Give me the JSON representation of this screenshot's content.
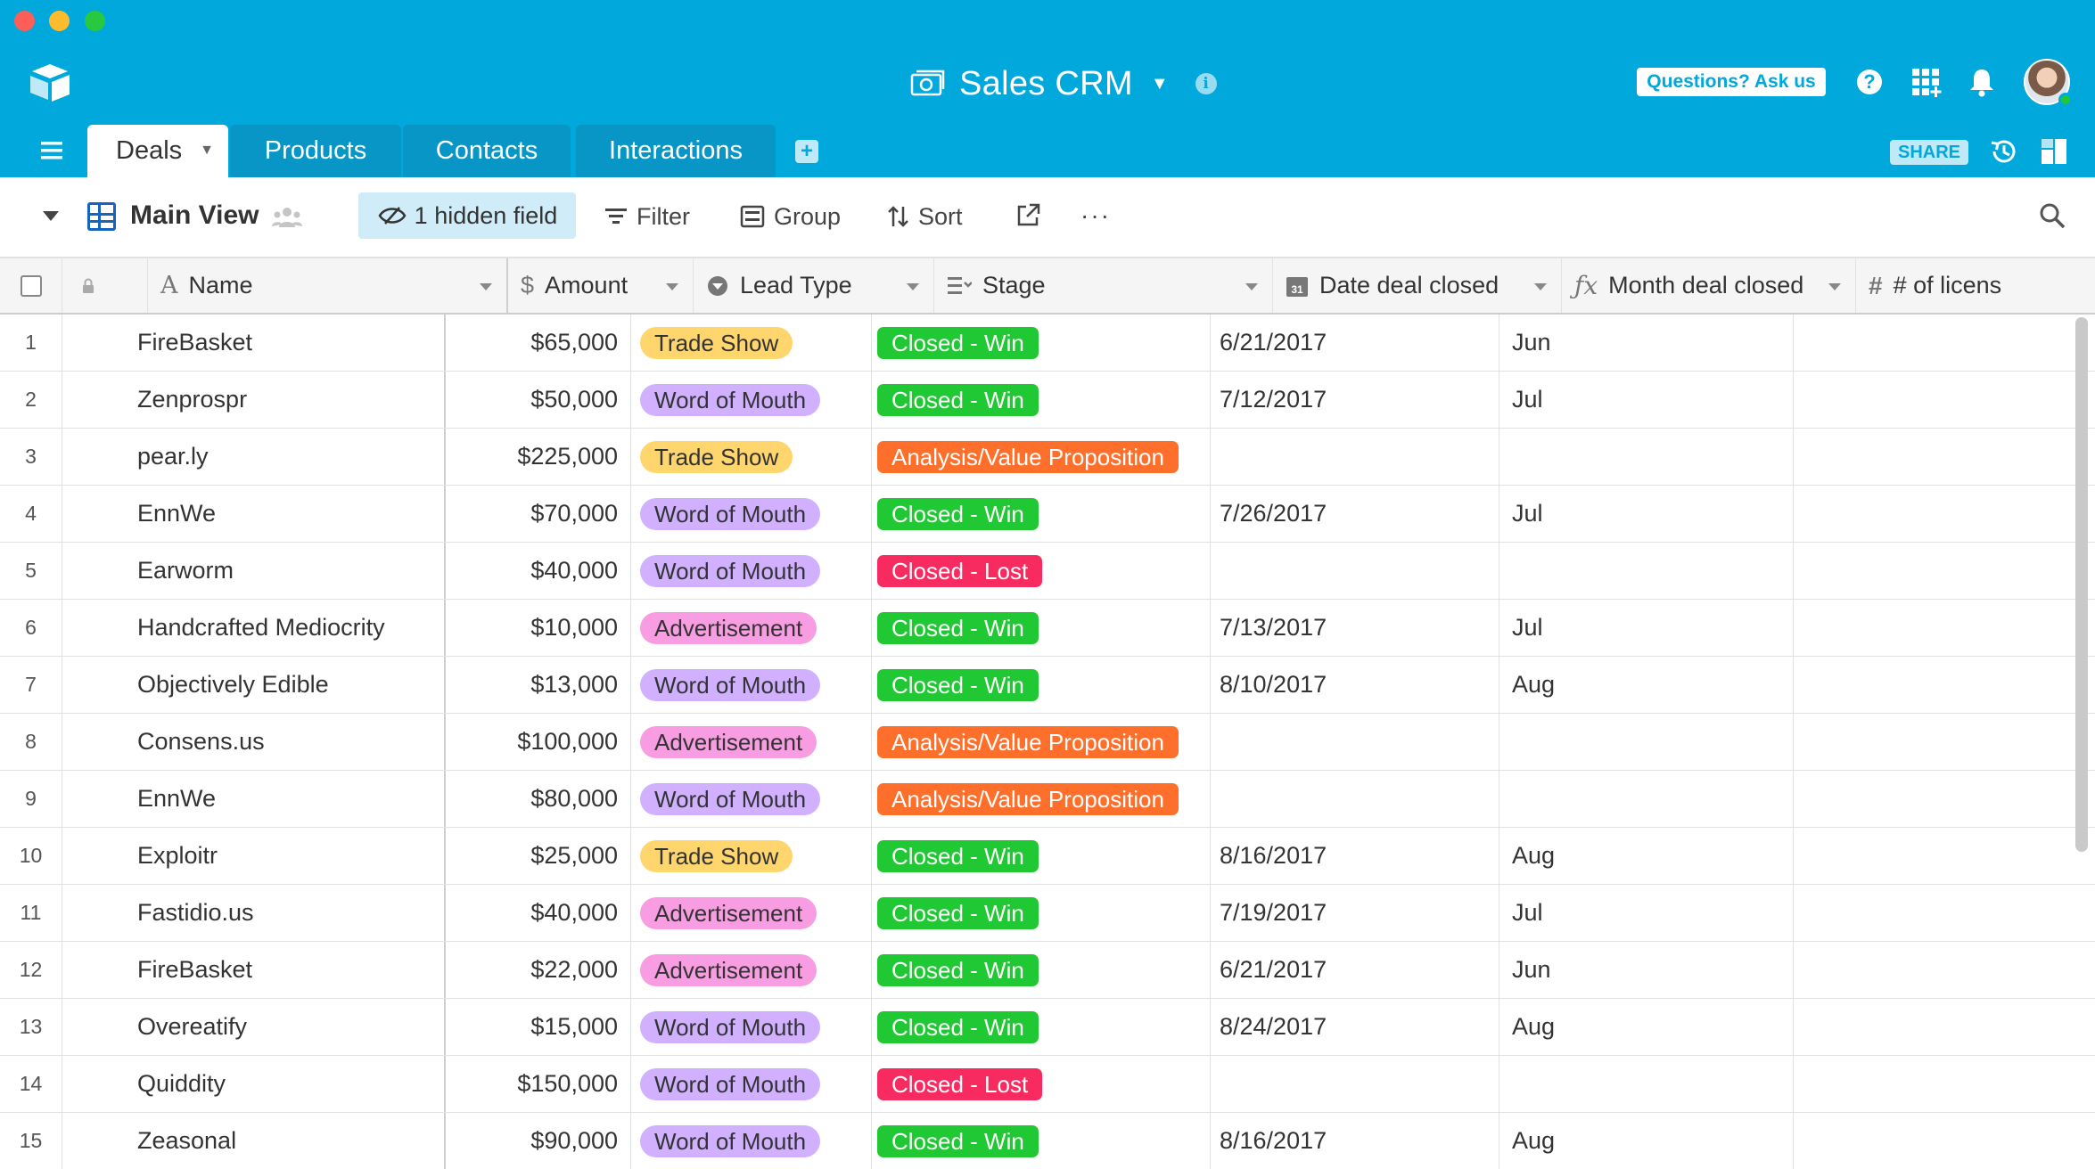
{
  "colors": {
    "header_bg": "#00a8dc",
    "tab_inactive_bg": "#0796c6",
    "pill_trade_show": "#ffd66e",
    "pill_word_of_mouth": "#d0b0ff",
    "pill_advertisement": "#f99de2",
    "stage_win": "#20c933",
    "stage_lost": "#f82b60",
    "stage_analysis": "#ff6f2c"
  },
  "header": {
    "base_title": "Sales CRM",
    "ask_label": "Questions? Ask us",
    "help_label": "?",
    "share_label": "SHARE",
    "info_label": "i"
  },
  "tabs": [
    {
      "label": "Deals",
      "active": true
    },
    {
      "label": "Products",
      "active": false
    },
    {
      "label": "Contacts",
      "active": false
    },
    {
      "label": "Interactions",
      "active": false
    }
  ],
  "viewbar": {
    "view_name": "Main View",
    "hidden_fields": "1 hidden field",
    "filter": "Filter",
    "group": "Group",
    "sort": "Sort",
    "more": "···"
  },
  "columns": {
    "name": "Name",
    "amount": "Amount",
    "lead_type": "Lead Type",
    "stage": "Stage",
    "date_closed": "Date deal closed",
    "month_closed": "Month deal closed",
    "licenses": "# of licens"
  },
  "rows": [
    {
      "num": "1",
      "name": "FireBasket",
      "amount": "$65,000",
      "lead": "Trade Show",
      "stage": "Closed - Win",
      "date": "6/21/2017",
      "month": "Jun"
    },
    {
      "num": "2",
      "name": "Zenprospr",
      "amount": "$50,000",
      "lead": "Word of Mouth",
      "stage": "Closed - Win",
      "date": "7/12/2017",
      "month": "Jul"
    },
    {
      "num": "3",
      "name": "pear.ly",
      "amount": "$225,000",
      "lead": "Trade Show",
      "stage": "Analysis/Value Proposition",
      "date": "",
      "month": ""
    },
    {
      "num": "4",
      "name": "EnnWe",
      "amount": "$70,000",
      "lead": "Word of Mouth",
      "stage": "Closed - Win",
      "date": "7/26/2017",
      "month": "Jul"
    },
    {
      "num": "5",
      "name": "Earworm",
      "amount": "$40,000",
      "lead": "Word of Mouth",
      "stage": "Closed - Lost",
      "date": "",
      "month": ""
    },
    {
      "num": "6",
      "name": "Handcrafted Mediocrity",
      "amount": "$10,000",
      "lead": "Advertisement",
      "stage": "Closed - Win",
      "date": "7/13/2017",
      "month": "Jul"
    },
    {
      "num": "7",
      "name": "Objectively Edible",
      "amount": "$13,000",
      "lead": "Word of Mouth",
      "stage": "Closed - Win",
      "date": "8/10/2017",
      "month": "Aug"
    },
    {
      "num": "8",
      "name": "Consens.us",
      "amount": "$100,000",
      "lead": "Advertisement",
      "stage": "Analysis/Value Proposition",
      "date": "",
      "month": ""
    },
    {
      "num": "9",
      "name": "EnnWe",
      "amount": "$80,000",
      "lead": "Word of Mouth",
      "stage": "Analysis/Value Proposition",
      "date": "",
      "month": ""
    },
    {
      "num": "10",
      "name": "Exploitr",
      "amount": "$25,000",
      "lead": "Trade Show",
      "stage": "Closed - Win",
      "date": "8/16/2017",
      "month": "Aug"
    },
    {
      "num": "11",
      "name": "Fastidio.us",
      "amount": "$40,000",
      "lead": "Advertisement",
      "stage": "Closed - Win",
      "date": "7/19/2017",
      "month": "Jul"
    },
    {
      "num": "12",
      "name": "FireBasket",
      "amount": "$22,000",
      "lead": "Advertisement",
      "stage": "Closed - Win",
      "date": "6/21/2017",
      "month": "Jun"
    },
    {
      "num": "13",
      "name": "Overeatify",
      "amount": "$15,000",
      "lead": "Word of Mouth",
      "stage": "Closed - Win",
      "date": "8/24/2017",
      "month": "Aug"
    },
    {
      "num": "14",
      "name": "Quiddity",
      "amount": "$150,000",
      "lead": "Word of Mouth",
      "stage": "Closed - Lost",
      "date": "",
      "month": ""
    },
    {
      "num": "15",
      "name": "Zeasonal",
      "amount": "$90,000",
      "lead": "Word of Mouth",
      "stage": "Closed - Win",
      "date": "8/16/2017",
      "month": "Aug"
    }
  ]
}
